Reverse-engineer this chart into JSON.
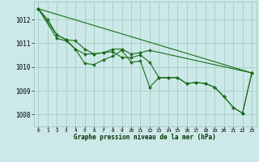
{
  "title": "Graphe pression niveau de la mer (hPa)",
  "background_color": "#cce8e8",
  "grid_color": "#99ccbb",
  "line_color": "#1a6e1a",
  "xlim": [
    -0.5,
    23.5
  ],
  "ylim": [
    1007.5,
    1012.75
  ],
  "yticks": [
    1008,
    1009,
    1010,
    1011,
    1012
  ],
  "xticks": [
    0,
    1,
    2,
    3,
    4,
    5,
    6,
    7,
    8,
    9,
    10,
    11,
    12,
    13,
    14,
    15,
    16,
    17,
    18,
    19,
    20,
    21,
    22,
    23
  ],
  "series": [
    {
      "x": [
        0,
        1,
        2,
        3,
        4,
        5,
        6,
        7,
        8,
        9,
        10,
        11,
        12,
        13,
        14,
        15,
        16,
        17,
        18,
        19,
        20,
        21,
        22,
        23
      ],
      "y": [
        1012.45,
        1012.0,
        1011.35,
        1011.15,
        1010.75,
        1010.15,
        1010.1,
        1010.3,
        1010.45,
        1010.7,
        1010.2,
        1010.25,
        1009.15,
        1009.55,
        1009.55,
        1009.55,
        1009.3,
        1009.35,
        1009.3,
        1009.15,
        1008.75,
        1008.3,
        1008.05,
        1009.75
      ]
    },
    {
      "x": [
        0,
        2,
        3,
        4,
        5,
        6,
        7,
        8,
        9,
        10,
        11,
        12,
        23
      ],
      "y": [
        1012.45,
        1011.35,
        1011.15,
        1011.1,
        1010.75,
        1010.55,
        1010.6,
        1010.75,
        1010.75,
        1010.55,
        1010.6,
        1010.7,
        1009.75
      ]
    },
    {
      "x": [
        0,
        2,
        3,
        4,
        5,
        6,
        7,
        8,
        9,
        10,
        11,
        12,
        13,
        14,
        15,
        16,
        17,
        18,
        19,
        20,
        21,
        22,
        23
      ],
      "y": [
        1012.45,
        1011.2,
        1011.1,
        1010.75,
        1010.55,
        1010.55,
        1010.6,
        1010.65,
        1010.4,
        1010.4,
        1010.5,
        1010.2,
        1009.55,
        1009.55,
        1009.55,
        1009.3,
        1009.35,
        1009.3,
        1009.15,
        1008.75,
        1008.3,
        1008.05,
        1009.75
      ]
    },
    {
      "x": [
        0,
        23
      ],
      "y": [
        1012.45,
        1009.75
      ]
    }
  ]
}
